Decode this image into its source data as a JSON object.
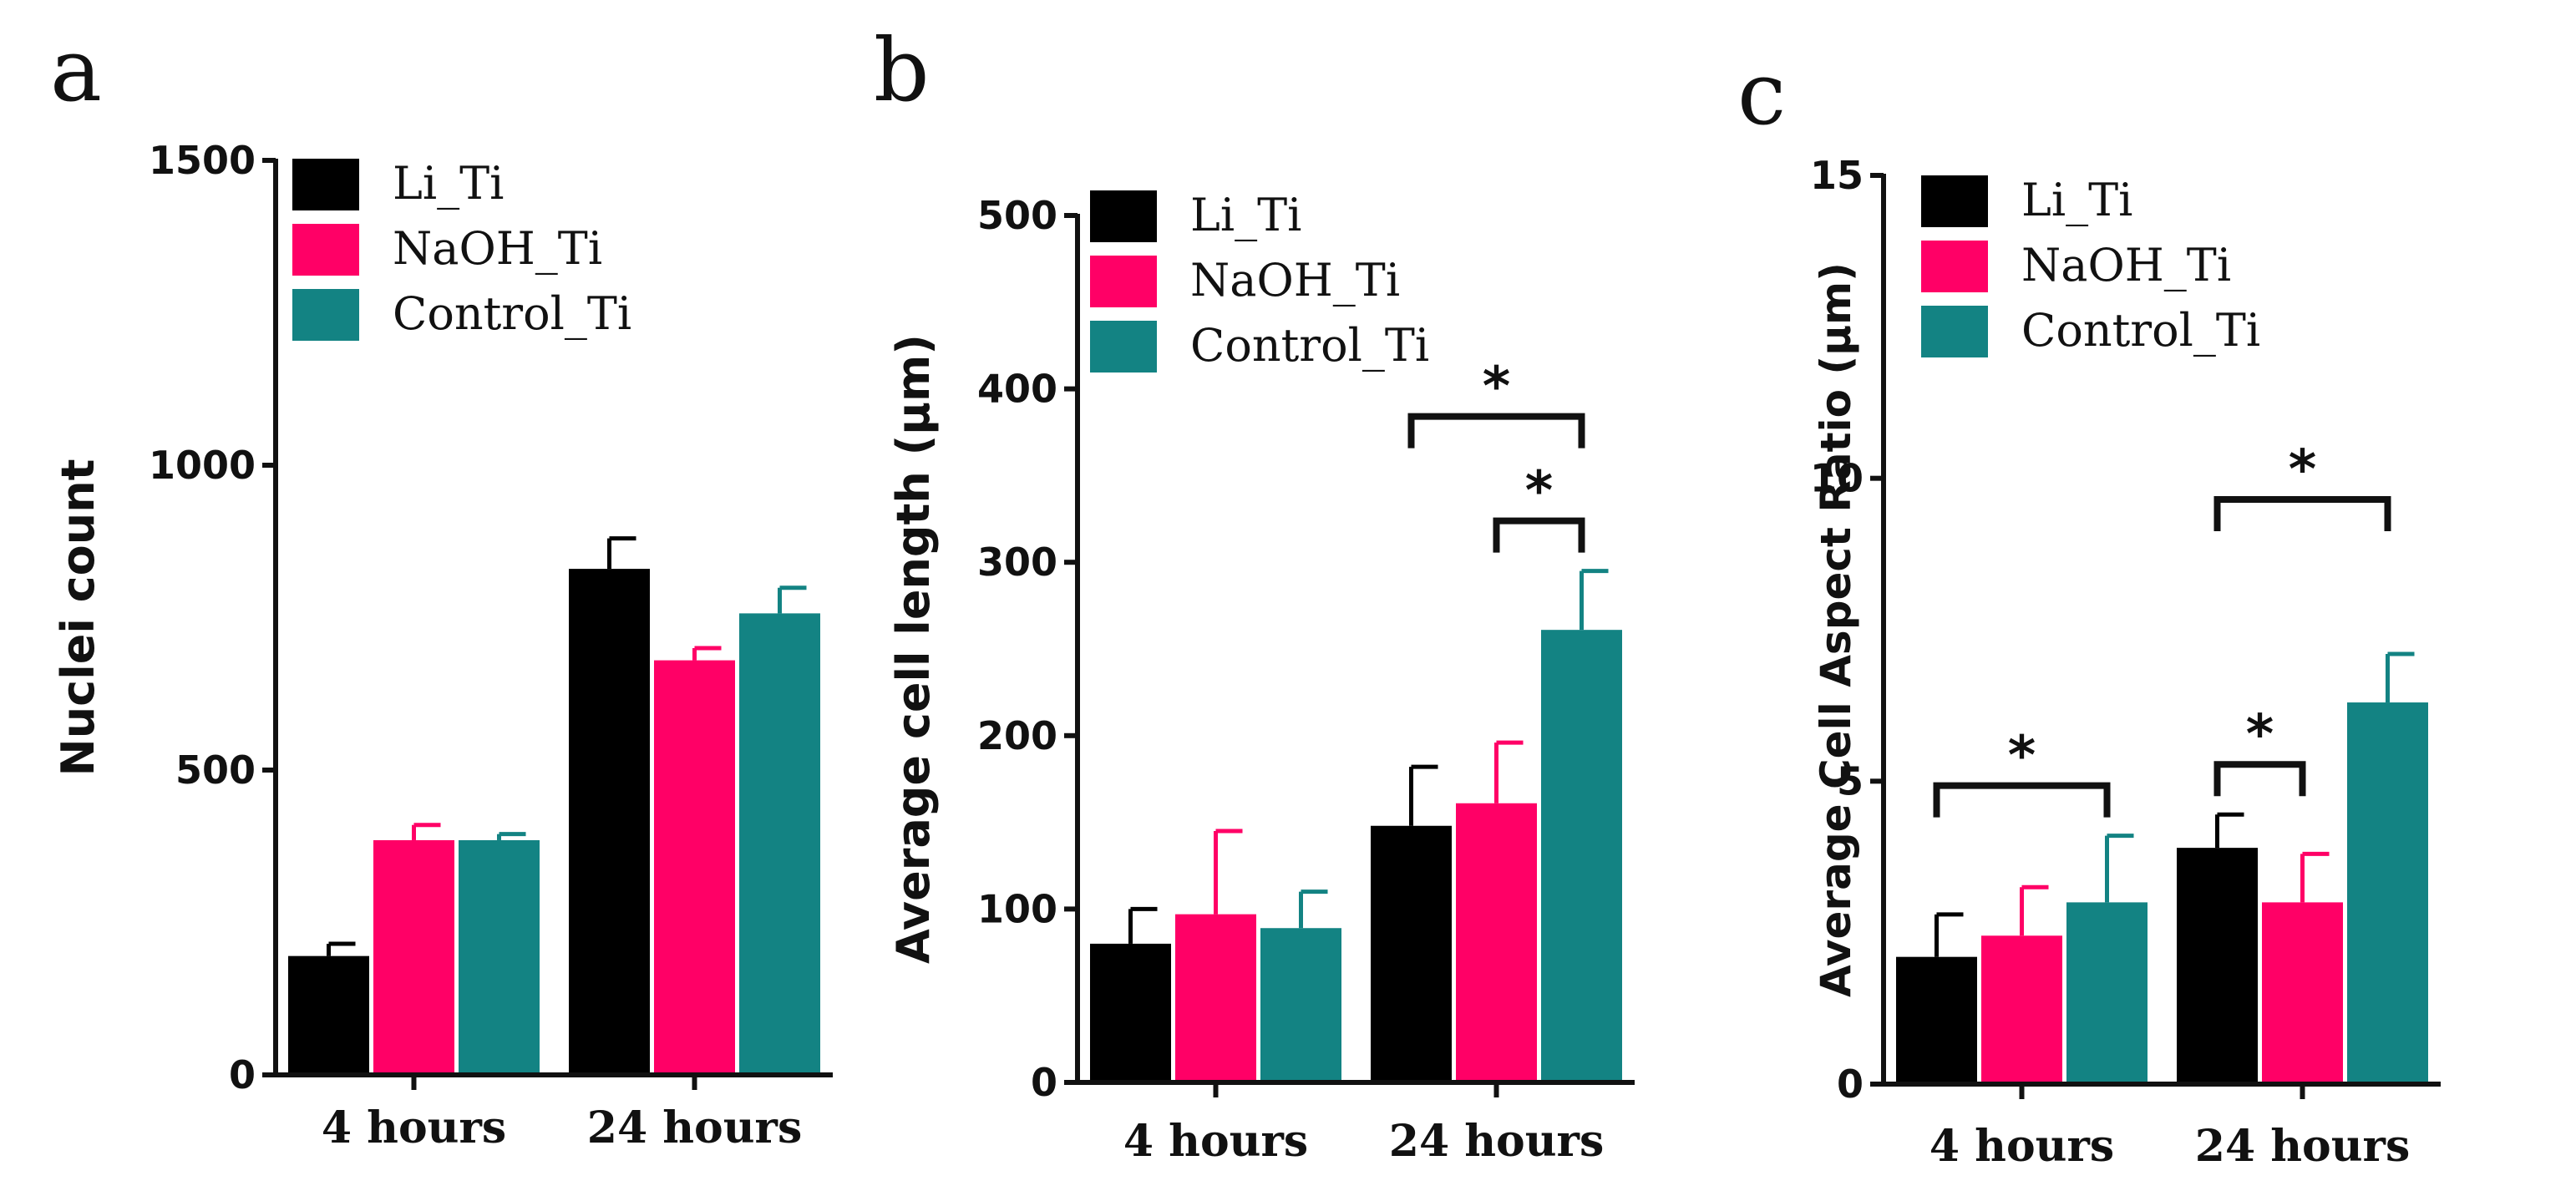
{
  "chart_data": [
    {
      "type": "bar",
      "panel_label": "a",
      "ylabel": "Nuclei count",
      "ylim": [
        0,
        1500
      ],
      "yticks": [
        0,
        500,
        1000,
        1500
      ],
      "categories": [
        "4 hours",
        "24 hours"
      ],
      "series": [
        {
          "name": "Li_Ti",
          "values": [
            195,
            830
          ],
          "errors": [
            20,
            50
          ]
        },
        {
          "name": "NaOH_Ti",
          "values": [
            385,
            680
          ],
          "errors": [
            25,
            20
          ]
        },
        {
          "name": "Control_Ti",
          "values": [
            385,
            757
          ],
          "errors": [
            10,
            42
          ]
        }
      ],
      "significance": [],
      "legend_position": "top-left",
      "grid": false
    },
    {
      "type": "bar",
      "panel_label": "b",
      "ylabel": "Average cell length (µm)",
      "ylim": [
        0,
        500
      ],
      "yticks": [
        0,
        100,
        200,
        300,
        400,
        500
      ],
      "categories": [
        "4 hours",
        "24 hours"
      ],
      "series": [
        {
          "name": "Li_Ti",
          "values": [
            80,
            148
          ],
          "errors": [
            20,
            34
          ]
        },
        {
          "name": "NaOH_Ti",
          "values": [
            97,
            161
          ],
          "errors": [
            48,
            35
          ]
        },
        {
          "name": "Control_Ti",
          "values": [
            89,
            261
          ],
          "errors": [
            21,
            34
          ]
        }
      ],
      "significance": [
        {
          "category": 1,
          "from": 1,
          "to": 2,
          "label": "*"
        },
        {
          "category": 1,
          "from": 0,
          "to": 2,
          "label": "*"
        }
      ],
      "legend_position": "top-left",
      "grid": false
    },
    {
      "type": "bar",
      "panel_label": "c",
      "ylabel": "Average Cell Aspect Ratio (µm)",
      "ylim": [
        0,
        15
      ],
      "yticks": [
        0,
        5,
        10,
        15
      ],
      "categories": [
        "4 hours",
        "24 hours"
      ],
      "series": [
        {
          "name": "Li_Ti",
          "values": [
            2.1,
            3.9
          ],
          "errors": [
            0.7,
            0.55
          ]
        },
        {
          "name": "NaOH_Ti",
          "values": [
            2.45,
            3.0
          ],
          "errors": [
            0.8,
            0.8
          ]
        },
        {
          "name": "Control_Ti",
          "values": [
            3.0,
            6.3
          ],
          "errors": [
            1.1,
            0.8
          ]
        }
      ],
      "significance": [
        {
          "category": 0,
          "from": 0,
          "to": 2,
          "label": "*"
        },
        {
          "category": 1,
          "from": 0,
          "to": 1,
          "label": "*"
        },
        {
          "category": 1,
          "from": 0,
          "to": 2,
          "label": "*"
        }
      ],
      "legend_position": "top-left",
      "grid": false
    }
  ],
  "colors": {
    "Li_Ti": "#000000",
    "NaOH_Ti": "#ff0066",
    "Control_Ti": "#138383",
    "axis": "#111111"
  }
}
